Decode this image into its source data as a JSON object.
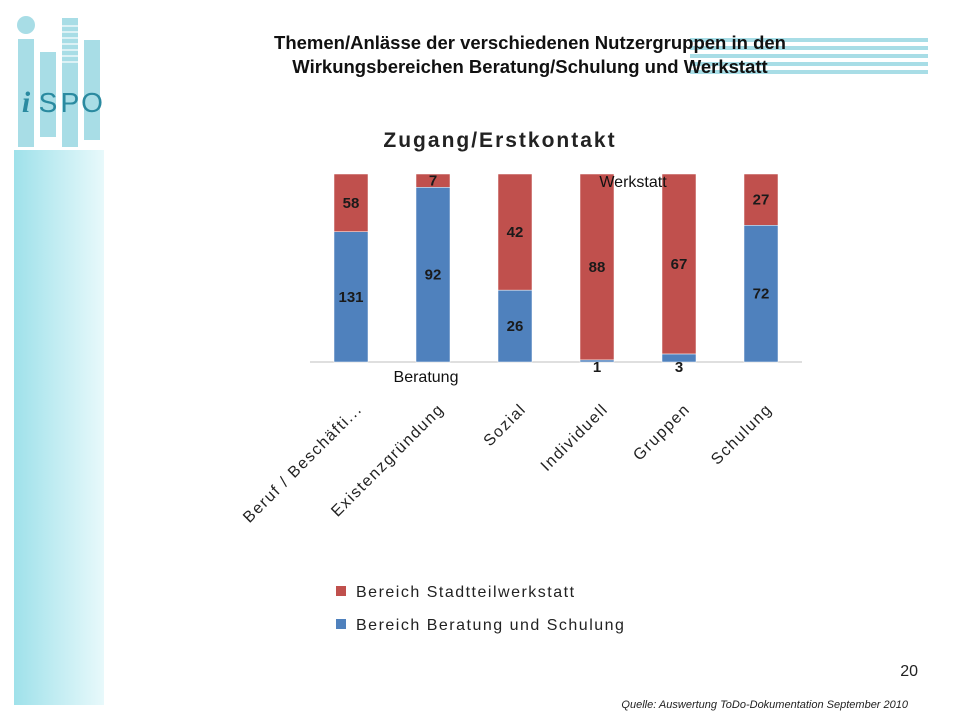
{
  "header": {
    "title_line1": "Themen/Anlässe der verschiedenen Nutzergruppen in den",
    "title_line2": "Wirkungsbereichen Beratung/Schulung und Werkstatt"
  },
  "logo": {
    "text_i": "i",
    "text_letters": [
      "S",
      "P",
      "O"
    ],
    "color": "#a8dde6",
    "text_color": "#2a8aa0"
  },
  "footer": {
    "page_number": "20",
    "source": "Quelle: Auswertung ToDo-Dokumentation  September 2010"
  },
  "chart_data": {
    "type": "bar",
    "stacked": true,
    "title": "Zugang/Erstkontakt",
    "categories": [
      "Beruf / Beschäfti...",
      "Existenzgründung",
      "Sozial",
      "Individuell",
      "Gruppen",
      "Schulung"
    ],
    "series": [
      {
        "name": "Bereich Beratung und Schulung",
        "color": "#4f81bd",
        "values": [
          131,
          92,
          26,
          1,
          3,
          72
        ]
      },
      {
        "name": "Bereich Stadtteilwerkstatt",
        "color": "#c0504d",
        "values": [
          58,
          7,
          42,
          88,
          67,
          27
        ]
      }
    ],
    "normalized": "100%",
    "annotations": [
      {
        "text": "Werkstatt"
      },
      {
        "text": "Beratung"
      }
    ],
    "legend_position": "bottom",
    "grid": false
  }
}
